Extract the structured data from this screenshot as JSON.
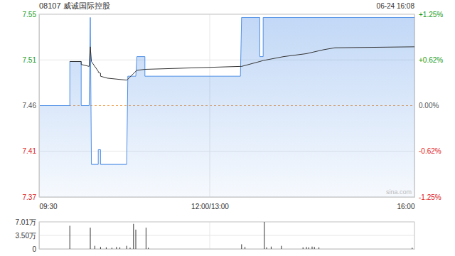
{
  "chart_data": [
    {
      "type": "line",
      "title": "08107 威诚国际控股",
      "subtitle": "06-24 16:08",
      "annotation": "sina.com",
      "x": [
        0,
        27,
        27,
        37,
        37,
        44,
        45,
        46,
        52,
        52,
        54,
        54,
        60,
        77,
        78,
        85,
        86,
        93,
        93,
        177,
        178,
        194,
        194,
        197,
        197,
        215,
        235,
        250,
        260,
        330
      ],
      "series": [
        {
          "type": "area",
          "color": "#4f8fe6",
          "values": [
            7.46,
            7.46,
            7.505,
            7.505,
            7.46,
            7.46,
            7.55,
            7.4,
            7.4,
            7.415,
            7.415,
            7.4,
            7.4,
            7.4,
            7.49,
            7.49,
            7.51,
            7.51,
            7.49,
            7.49,
            7.55,
            7.55,
            7.51,
            7.51,
            7.55,
            7.55,
            7.55,
            7.55,
            7.55,
            7.55
          ]
        },
        {
          "type": "line",
          "color": "#333333",
          "values": [
            null,
            null,
            7.505,
            7.505,
            7.502,
            7.5,
            7.52,
            7.505,
            7.495,
            7.494,
            7.493,
            7.49,
            7.488,
            7.486,
            7.487,
            7.495,
            7.496,
            7.497,
            7.497,
            7.5,
            7.5,
            7.505,
            7.505,
            7.506,
            7.506,
            7.51,
            7.513,
            7.517,
            7.519,
            7.52
          ]
        }
      ],
      "xlim": [
        0,
        330
      ],
      "xticks": [
        {
          "value": 0,
          "label": "09:30"
        },
        {
          "value": 150,
          "label": "12:00/13:00"
        },
        {
          "value": 330,
          "label": "16:00"
        }
      ],
      "ylim": [
        7.36675,
        7.55325
      ],
      "yticks": [
        {
          "value": 7.55325,
          "label": "7.55"
        },
        {
          "value": 7.50663,
          "label": "7.51"
        },
        {
          "value": 7.46,
          "label": "7.46"
        },
        {
          "value": 7.41338,
          "label": "7.41"
        },
        {
          "value": 7.36675,
          "label": "7.37"
        }
      ],
      "y2lim": [
        -1.25,
        1.25
      ],
      "y2ticks": [
        {
          "value": 1.25,
          "label": "+1.25%"
        },
        {
          "value": 0.625,
          "label": "+0.62%"
        },
        {
          "value": 0,
          "label": "0.00%"
        },
        {
          "value": -0.625,
          "label": "-0.62%"
        },
        {
          "value": -1.25,
          "label": "-1.25%"
        }
      ],
      "grid": true
    },
    {
      "type": "bar",
      "color": "#333333",
      "x": [
        27,
        45,
        49,
        54,
        59,
        64,
        68,
        71,
        77,
        80,
        83,
        85,
        94,
        96,
        178,
        181,
        198,
        200,
        204,
        213,
        232,
        235,
        237,
        240,
        242,
        246,
        328
      ],
      "values": [
        60000,
        55000,
        8000,
        5000,
        4000,
        3000,
        5000,
        4000,
        8000,
        3000,
        65000,
        50000,
        55000,
        3000,
        12000,
        5000,
        70100,
        4000,
        6000,
        8000,
        4000,
        5000,
        4000,
        6000,
        5000,
        4000,
        3000
      ],
      "xlim": [
        0,
        330
      ],
      "xticks": [
        0,
        150,
        330
      ],
      "ylim": [
        0,
        70100
      ],
      "yticks": [
        0,
        {
          "value": 35000,
          "label": "3.50万"
        },
        {
          "value": 70100,
          "label": "7.01万"
        }
      ],
      "tick_labels": "y",
      "grid": true
    }
  ]
}
